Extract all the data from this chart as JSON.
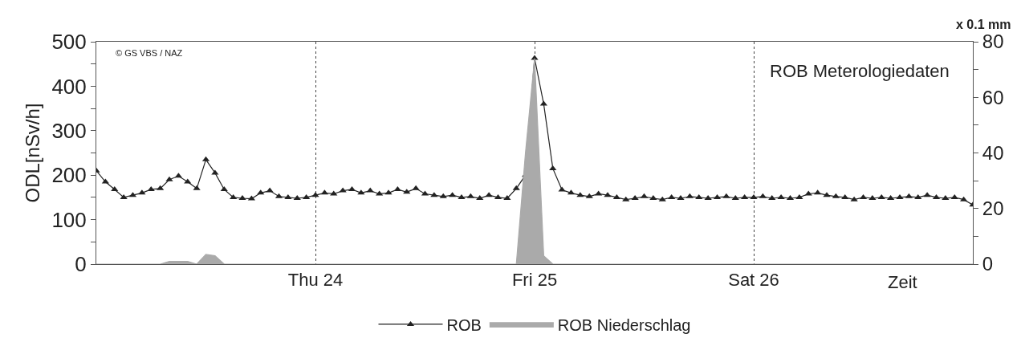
{
  "chart_data": {
    "type": "line",
    "ylabel": "ODL[nSv/h]",
    "y2label": "x 0.1 mm",
    "xlabel": "Zeit",
    "annotations": [
      "© GS VBS / NAZ",
      "ROB Meterologiedaten"
    ],
    "categories": [
      null,
      null,
      null,
      null,
      null,
      null,
      null,
      null,
      null,
      null,
      null,
      null,
      null,
      null,
      null,
      null,
      null,
      null,
      null,
      null,
      null,
      null,
      null,
      null,
      "Thu 24",
      null,
      null,
      null,
      null,
      null,
      null,
      null,
      null,
      null,
      null,
      null,
      null,
      null,
      null,
      null,
      null,
      null,
      null,
      null,
      null,
      null,
      null,
      null,
      "Fri 25",
      null,
      null,
      null,
      null,
      null,
      null,
      null,
      null,
      null,
      null,
      null,
      null,
      null,
      null,
      null,
      null,
      null,
      null,
      null,
      null,
      null,
      null,
      null,
      "Sat 26",
      null,
      null,
      null,
      null,
      null,
      null,
      null,
      null,
      null,
      null,
      null,
      null,
      null,
      null,
      null,
      null,
      null,
      null,
      null,
      null,
      null,
      null,
      null,
      null
    ],
    "ylim": [
      0,
      500
    ],
    "yticks": [
      0,
      {
        "value": 50,
        "label": null
      },
      100,
      {
        "value": 150,
        "label": null
      },
      200,
      {
        "value": 250,
        "label": null
      },
      300,
      {
        "value": 350,
        "label": null
      },
      400,
      {
        "value": 450,
        "label": null
      },
      500
    ],
    "y2lim": [
      0,
      80
    ],
    "y2ticks": [
      0,
      {
        "value": 10,
        "label": null
      },
      20,
      {
        "value": 30,
        "label": null
      },
      40,
      {
        "value": 50,
        "label": null
      },
      60,
      {
        "value": 70,
        "label": null
      },
      80
    ],
    "grid": "x",
    "legend": "bottom",
    "series": [
      {
        "name": "ROB",
        "color": "#222222",
        "marker": "triangle",
        "line_style": "solid",
        "values": [
          210,
          185,
          168,
          150,
          155,
          160,
          168,
          170,
          190,
          198,
          185,
          170,
          235,
          205,
          168,
          150,
          148,
          147,
          160,
          165,
          152,
          150,
          148,
          150,
          155,
          160,
          158,
          165,
          168,
          160,
          165,
          158,
          160,
          168,
          162,
          170,
          158,
          155,
          152,
          155,
          150,
          152,
          148,
          155,
          150,
          148,
          170,
          200,
          463,
          360,
          215,
          167,
          160,
          155,
          152,
          158,
          155,
          150,
          145,
          148,
          152,
          148,
          145,
          150,
          148,
          152,
          150,
          148,
          150,
          152,
          148,
          150,
          150,
          152,
          148,
          150,
          148,
          150,
          158,
          160,
          155,
          152,
          150,
          145,
          150,
          148,
          150,
          148,
          150,
          152,
          150,
          155,
          150,
          148,
          150,
          145,
          133
        ]
      },
      {
        "name": "ROB Niederschlag",
        "type": "area",
        "axis": "y2",
        "color": "#aaaaaa",
        "line_style": "solid",
        "values": [
          0,
          0,
          0,
          0,
          0,
          0,
          0,
          0,
          1,
          1,
          1,
          0,
          3.5,
          3,
          0,
          0,
          0,
          0,
          0,
          0,
          0,
          0,
          0,
          0,
          0,
          0,
          0,
          0,
          0,
          0,
          0,
          0,
          0,
          0,
          0,
          0,
          0,
          0,
          0,
          0,
          0,
          0,
          0,
          0,
          0,
          0,
          0,
          40,
          74,
          3,
          0,
          0,
          0,
          0,
          0,
          0,
          0,
          0,
          0,
          0,
          0,
          0,
          0,
          0,
          0,
          0,
          0,
          0,
          0,
          0,
          0,
          0,
          0,
          0,
          0,
          0,
          0,
          0,
          0,
          0,
          0,
          0,
          0,
          0,
          0,
          0,
          0,
          0,
          0,
          0,
          0,
          0,
          0,
          0,
          0,
          0,
          0
        ]
      }
    ]
  }
}
